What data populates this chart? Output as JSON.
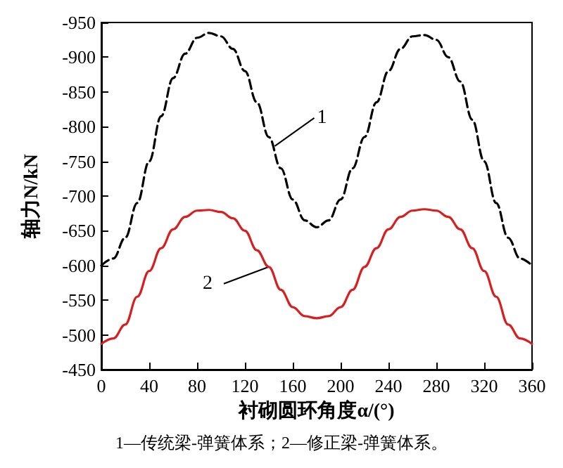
{
  "chart_data": {
    "type": "line",
    "xlabel": "衬砌圆环角度α/(°)",
    "ylabel": "轴力N/kN",
    "x": [
      0,
      10,
      20,
      30,
      40,
      50,
      60,
      70,
      80,
      90,
      100,
      110,
      120,
      130,
      140,
      150,
      160,
      170,
      180,
      190,
      200,
      210,
      220,
      230,
      240,
      250,
      260,
      270,
      280,
      290,
      300,
      310,
      320,
      330,
      340,
      350,
      360
    ],
    "series": [
      {
        "color": "#000000",
        "line_style": "dashed",
        "values": [
          -600,
          -610,
          -640,
          -690,
          -750,
          -815,
          -870,
          -905,
          -928,
          -935,
          -930,
          -912,
          -880,
          -835,
          -785,
          -740,
          -695,
          -665,
          -655,
          -665,
          -695,
          -740,
          -785,
          -835,
          -880,
          -912,
          -930,
          -932,
          -925,
          -900,
          -865,
          -810,
          -750,
          -690,
          -640,
          -610,
          -600
        ]
      },
      {
        "color": "#d81e1e",
        "line_style": "solid",
        "values": [
          -487,
          -495,
          -515,
          -555,
          -592,
          -625,
          -652,
          -670,
          -679,
          -680,
          -677,
          -668,
          -650,
          -622,
          -598,
          -565,
          -540,
          -527,
          -524,
          -527,
          -540,
          -565,
          -598,
          -625,
          -652,
          -670,
          -679,
          -681,
          -679,
          -670,
          -652,
          -625,
          -592,
          -555,
          -515,
          -495,
          -487
        ]
      }
    ],
    "xlim": [
      0,
      360
    ],
    "xticks": [
      0,
      40,
      80,
      120,
      160,
      200,
      240,
      280,
      320,
      360
    ],
    "ylim": [
      -450,
      -950
    ],
    "yticks": [
      -450,
      -500,
      -550,
      -600,
      -650,
      -700,
      -750,
      -800,
      -850,
      -900,
      -950
    ],
    "grid": false,
    "marker": "none",
    "annotations": [
      {
        "text": "1",
        "x": 145,
        "y": -772
      },
      {
        "text": "2",
        "x": 140,
        "y": -598
      },
      "1—传统梁-弹簧体系；2—修正梁-弹簧体系。"
    ]
  }
}
